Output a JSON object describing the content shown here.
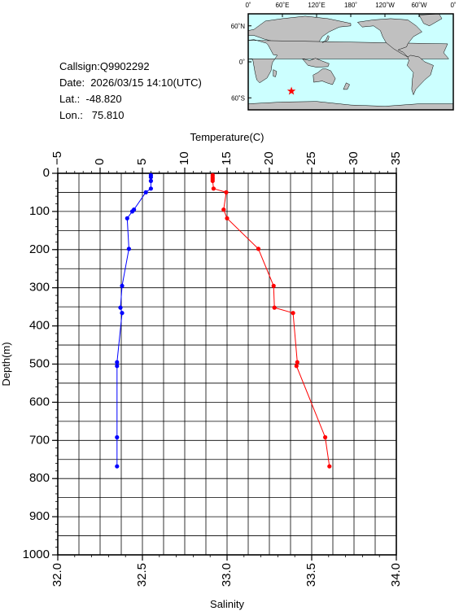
{
  "info": {
    "callsign": "Callsign:Q9902292",
    "date": "Date:  2026/03/15 14:10(UTC)",
    "lat": "Lat.:  -48.820",
    "lon": "Lon.:   75.810"
  },
  "map": {
    "lon_labels": [
      "0˚",
      "60˚E",
      "120˚E",
      "180˚",
      "120˚W",
      "60˚W",
      "0˚"
    ],
    "lat_labels": [
      "60˚N",
      "0˚",
      "60˚S"
    ],
    "marker": {
      "lat": -48.82,
      "lon": 75.81
    },
    "ocean_color": "#ccffff",
    "land_color": "#c0c0c0",
    "marker_color": "#ff0000"
  },
  "chart_data": {
    "type": "line",
    "title": "",
    "top_axis": {
      "label": "Temperature(C)",
      "range": [
        -5,
        35
      ],
      "ticks": [
        "−5",
        "0",
        "5",
        "10",
        "15",
        "20",
        "25",
        "30",
        "35"
      ]
    },
    "bottom_axis": {
      "label": "Salinity",
      "range": [
        32.0,
        34.0
      ],
      "ticks": [
        "32.0",
        "32.5",
        "33.0",
        "33.5",
        "34.0"
      ]
    },
    "left_axis": {
      "label": "Depth(m)",
      "range": [
        0,
        1000
      ],
      "ticks": [
        "0",
        "100",
        "200",
        "300",
        "400",
        "500",
        "600",
        "700",
        "800",
        "900",
        "1000"
      ]
    },
    "grid": true,
    "series": [
      {
        "axis": "temperature",
        "color": "#ff0000",
        "points": [
          [
            13.3,
            5
          ],
          [
            13.3,
            10
          ],
          [
            13.3,
            15
          ],
          [
            13.3,
            20
          ],
          [
            13.4,
            40
          ],
          [
            14.9,
            50
          ],
          [
            14.6,
            95
          ],
          [
            15.0,
            118
          ],
          [
            18.7,
            198
          ],
          [
            20.5,
            295
          ],
          [
            20.6,
            352
          ],
          [
            22.8,
            366
          ],
          [
            23.3,
            495
          ],
          [
            23.2,
            505
          ],
          [
            26.6,
            692
          ],
          [
            27.1,
            768
          ]
        ]
      },
      {
        "axis": "salinity",
        "color": "#0000ff",
        "points": [
          [
            32.55,
            5
          ],
          [
            32.55,
            10
          ],
          [
            32.55,
            20
          ],
          [
            32.55,
            40
          ],
          [
            32.52,
            50
          ],
          [
            32.45,
            95
          ],
          [
            32.44,
            100
          ],
          [
            32.41,
            118
          ],
          [
            32.42,
            198
          ],
          [
            32.38,
            295
          ],
          [
            32.37,
            352
          ],
          [
            32.38,
            366
          ],
          [
            32.35,
            495
          ],
          [
            32.35,
            505
          ],
          [
            32.35,
            692
          ],
          [
            32.35,
            768
          ]
        ]
      }
    ]
  }
}
